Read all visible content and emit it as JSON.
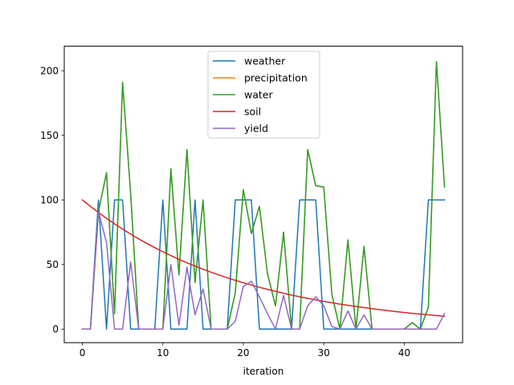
{
  "chart_data": {
    "type": "line",
    "title": "",
    "xlabel": "iteration",
    "ylabel": "",
    "xlim": [
      -2.25,
      47.25
    ],
    "ylim": [
      -10.5,
      219
    ],
    "xticks": [
      0,
      10,
      20,
      30,
      40
    ],
    "yticks": [
      0,
      50,
      100,
      150,
      200
    ],
    "legend_position": "top-center",
    "grid": false,
    "x": [
      0,
      1,
      2,
      3,
      4,
      5,
      6,
      7,
      8,
      9,
      10,
      11,
      12,
      13,
      14,
      15,
      16,
      17,
      18,
      19,
      20,
      21,
      22,
      23,
      24,
      25,
      26,
      27,
      28,
      29,
      30,
      31,
      32,
      33,
      34,
      35,
      36,
      37,
      38,
      39,
      40,
      41,
      42,
      43,
      44,
      45
    ],
    "series": [
      {
        "name": "weather",
        "color": "#1f77b4",
        "values": [
          0,
          0,
          100,
          0,
          100,
          100,
          0,
          0,
          0,
          0,
          100,
          0,
          0,
          0,
          100,
          0,
          0,
          0,
          0,
          100,
          100,
          100,
          0,
          0,
          0,
          0,
          0,
          100,
          100,
          100,
          0,
          0,
          0,
          0,
          0,
          0,
          0,
          0,
          0,
          0,
          0,
          0,
          0,
          100,
          100,
          100
        ]
      },
      {
        "name": "precipitation",
        "color": "#ff7f0e",
        "values": [
          0,
          0,
          91,
          121,
          12,
          191,
          105,
          0,
          0,
          0,
          0,
          124,
          42,
          139,
          36,
          100,
          0,
          0,
          0,
          28,
          108,
          74,
          95,
          43,
          18,
          75,
          0,
          0,
          139,
          111,
          110,
          27,
          0,
          69,
          0,
          64,
          0,
          0,
          0,
          0,
          0,
          5,
          0,
          17,
          207,
          110
        ]
      },
      {
        "name": "water",
        "color": "#2ca02c",
        "values": [
          0,
          0,
          91,
          121,
          12,
          191,
          105,
          0,
          0,
          0,
          0,
          124,
          42,
          139,
          36,
          100,
          0,
          0,
          0,
          28,
          108,
          74,
          95,
          43,
          18,
          75,
          0,
          0,
          139,
          111,
          110,
          27,
          0,
          69,
          0,
          64,
          0,
          0,
          0,
          0,
          0,
          5,
          0,
          17,
          207,
          110
        ]
      },
      {
        "name": "soil",
        "color": "#d62728",
        "values": [
          100,
          95,
          90.25,
          85.74,
          81.45,
          77.38,
          73.51,
          69.83,
          66.34,
          63.02,
          59.87,
          56.88,
          54.04,
          51.33,
          48.77,
          46.33,
          44.01,
          41.81,
          39.72,
          37.74,
          35.85,
          34.06,
          32.35,
          30.74,
          29.2,
          27.74,
          26.35,
          25.03,
          23.78,
          22.59,
          21.46,
          20.39,
          19.37,
          18.4,
          17.48,
          16.61,
          15.78,
          14.99,
          14.24,
          13.53,
          12.85,
          12.21,
          11.6,
          11.02,
          10.47,
          9.94
        ]
      },
      {
        "name": "yield",
        "color": "#9467bd",
        "values": [
          0,
          0,
          91,
          67,
          0,
          0,
          52,
          0,
          0,
          0,
          0,
          50,
          3,
          48,
          11,
          31,
          0,
          0,
          0,
          6,
          33,
          37,
          25,
          12,
          0,
          26,
          0,
          0,
          18,
          25,
          18,
          2,
          0,
          14,
          0,
          11,
          0,
          0,
          0,
          0,
          0,
          0,
          0,
          0,
          0,
          12
        ]
      }
    ]
  }
}
